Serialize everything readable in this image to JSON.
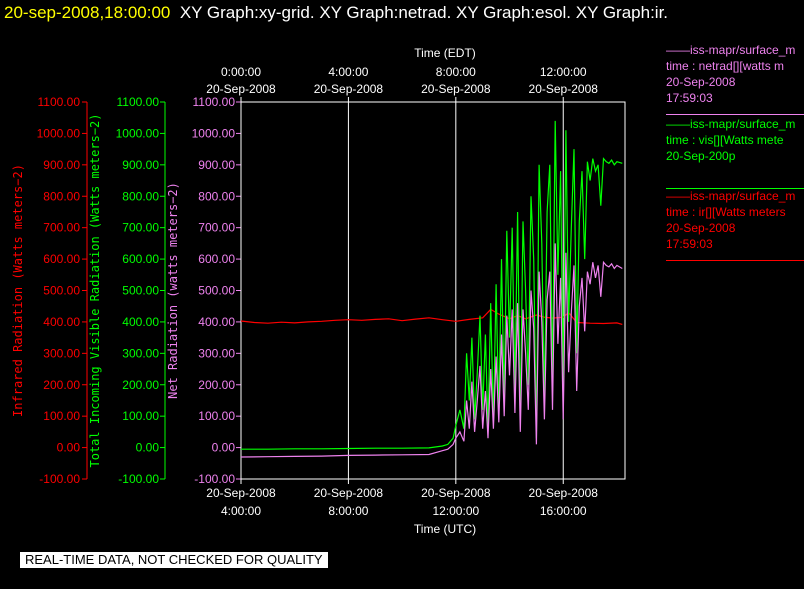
{
  "header": {
    "date": "20-sep-2008,18:00:00",
    "graphs": "XY Graph:xy-grid.  XY Graph:netrad.  XY Graph:esol.  XY Graph:ir."
  },
  "colors": {
    "infrared": "#ff0000",
    "visible": "#00ff00",
    "net": "#ee82ee",
    "axis": "#ffffff",
    "title": "#ffff00"
  },
  "chart_data": {
    "type": "line",
    "top_axis": {
      "title": "Time (EDT)",
      "ticks": [
        {
          "time": "0:00:00",
          "date": "20-Sep-2008",
          "hour_utc": 4
        },
        {
          "time": "4:00:00",
          "date": "20-Sep-2008",
          "hour_utc": 8
        },
        {
          "time": "8:00:00",
          "date": "20-Sep-2008",
          "hour_utc": 12
        },
        {
          "time": "12:00:00",
          "date": "20-Sep-2008",
          "hour_utc": 16
        }
      ]
    },
    "bottom_axis": {
      "title": "Time (UTC)",
      "xlim": [
        4,
        18.3
      ],
      "ticks": [
        {
          "date": "20-Sep-2008",
          "time": "4:00:00",
          "hour_utc": 4
        },
        {
          "date": "20-Sep-2008",
          "time": "8:00:00",
          "hour_utc": 8
        },
        {
          "date": "20-Sep-2008",
          "time": "12:00:00",
          "hour_utc": 12
        },
        {
          "date": "20-Sep-2008",
          "time": "16:00:00",
          "hour_utc": 16
        }
      ]
    },
    "y_axes": [
      {
        "label": "Infrared Radiation (Watts meters−2)",
        "color": "#ff0000",
        "ylim": [
          -100,
          1100
        ],
        "ticks": [
          "1100.00",
          "1000.00",
          "900.00",
          "800.00",
          "700.00",
          "600.00",
          "500.00",
          "400.00",
          "300.00",
          "200.00",
          "100.00",
          "0.00",
          "-100.00"
        ]
      },
      {
        "label": "Total Incoming Visible Radiation (Watts meters−2)",
        "color": "#00ff00",
        "ylim": [
          -100,
          1100
        ],
        "ticks": [
          "1100.00",
          "1000.00",
          "900.00",
          "800.00",
          "700.00",
          "600.00",
          "500.00",
          "400.00",
          "300.00",
          "200.00",
          "100.00",
          "0.00",
          "-100.00"
        ]
      },
      {
        "label": "Net Radiation (watts meters−2)",
        "color": "#ee82ee",
        "ylim": [
          -100,
          1100
        ],
        "ticks": [
          "1100.00",
          "1000.00",
          "900.00",
          "800.00",
          "700.00",
          "600.00",
          "500.00",
          "400.00",
          "300.00",
          "200.00",
          "100.00",
          "0.00",
          "-100.00"
        ]
      }
    ],
    "grid": "vertical",
    "series": [
      {
        "key": "infrared",
        "color": "#ff0000",
        "x": [
          4,
          4.5,
          5,
          5.5,
          6,
          6.5,
          7,
          7.5,
          8,
          8.5,
          9,
          9.5,
          10,
          10.5,
          11,
          11.5,
          12,
          12.5,
          13,
          13.3,
          13.6,
          14,
          14.3,
          14.6,
          15,
          15.3,
          15.6,
          16,
          16.2,
          16.5,
          17,
          17.5,
          18,
          18.2
        ],
        "y": [
          403,
          398,
          396,
          399,
          397,
          400,
          402,
          405,
          407,
          405,
          408,
          410,
          404,
          409,
          413,
          407,
          402,
          408,
          413,
          440,
          425,
          410,
          420,
          410,
          422,
          415,
          412,
          415,
          430,
          398,
          396,
          395,
          397,
          392
        ]
      },
      {
        "key": "visible",
        "color": "#00ff00",
        "x": [
          4,
          5,
          6,
          7,
          8,
          9,
          10,
          11,
          11.5,
          11.7,
          11.9,
          12.0,
          12.15,
          12.3,
          12.4,
          12.5,
          12.6,
          12.7,
          12.8,
          12.9,
          13.0,
          13.1,
          13.2,
          13.3,
          13.4,
          13.5,
          13.6,
          13.7,
          13.8,
          13.9,
          14.0,
          14.1,
          14.2,
          14.3,
          14.4,
          14.5,
          14.6,
          14.7,
          14.8,
          14.9,
          15.0,
          15.1,
          15.2,
          15.3,
          15.4,
          15.5,
          15.6,
          15.7,
          15.8,
          15.9,
          16.0,
          16.1,
          16.2,
          16.3,
          16.4,
          16.5,
          16.6,
          16.7,
          16.8,
          16.9,
          17.0,
          17.1,
          17.2,
          17.3,
          17.4,
          17.5,
          17.6,
          17.7,
          17.8,
          17.9,
          18.0,
          18.2
        ],
        "y": [
          -5,
          -5,
          -4,
          -4,
          -3,
          -2,
          -2,
          -1,
          5,
          10,
          30,
          70,
          120,
          60,
          300,
          150,
          350,
          90,
          240,
          420,
          120,
          360,
          60,
          460,
          80,
          520,
          100,
          600,
          150,
          690,
          350,
          700,
          180,
          750,
          80,
          720,
          500,
          200,
          800,
          600,
          30,
          900,
          650,
          150,
          750,
          900,
          200,
          1040,
          550,
          880,
          180,
          1010,
          400,
          700,
          950,
          300,
          720,
          880,
          600,
          910,
          850,
          920,
          880,
          900,
          770,
          920,
          910,
          905,
          915,
          900,
          910,
          905
        ]
      },
      {
        "key": "net",
        "color": "#ee82ee",
        "x": [
          4,
          5,
          6,
          7,
          8,
          9,
          10,
          11,
          11.5,
          11.7,
          11.9,
          12.0,
          12.15,
          12.3,
          12.4,
          12.5,
          12.6,
          12.7,
          12.8,
          12.9,
          13.0,
          13.1,
          13.2,
          13.3,
          13.4,
          13.5,
          13.6,
          13.7,
          13.8,
          13.9,
          14.0,
          14.1,
          14.2,
          14.3,
          14.4,
          14.5,
          14.6,
          14.7,
          14.8,
          14.9,
          15.0,
          15.1,
          15.2,
          15.3,
          15.4,
          15.5,
          15.6,
          15.7,
          15.8,
          15.9,
          16.0,
          16.1,
          16.2,
          16.3,
          16.4,
          16.5,
          16.6,
          16.7,
          16.8,
          16.9,
          17.0,
          17.1,
          17.2,
          17.3,
          17.4,
          17.5,
          17.6,
          17.7,
          17.8,
          17.9,
          18.0,
          18.2
        ],
        "y": [
          -30,
          -29,
          -28,
          -27,
          -25,
          -24,
          -23,
          -22,
          -10,
          -5,
          10,
          30,
          50,
          20,
          150,
          60,
          210,
          50,
          150,
          260,
          60,
          180,
          30,
          250,
          60,
          290,
          80,
          360,
          100,
          420,
          230,
          440,
          110,
          460,
          50,
          440,
          300,
          120,
          500,
          380,
          10,
          560,
          400,
          90,
          470,
          560,
          120,
          650,
          330,
          540,
          90,
          620,
          240,
          430,
          580,
          180,
          450,
          540,
          370,
          560,
          520,
          590,
          540,
          580,
          480,
          590,
          580,
          575,
          585,
          570,
          580,
          570
        ]
      }
    ]
  },
  "legend": [
    {
      "color": "#ee82ee",
      "lines": [
        "iss-mapr/surface_m",
        "time : netrad[][watts m",
        "20-Sep-2008",
        "17:59:03"
      ]
    },
    {
      "color": "#00ff00",
      "lines": [
        "iss-mapr/surface_m",
        "time : vis[][Watts mete",
        "20-Sep-200p",
        ""
      ]
    },
    {
      "color": "#ff0000",
      "lines": [
        "iss-mapr/surface_m",
        "time : ir[][Watts meters",
        "20-Sep-2008",
        "17:59:03"
      ]
    }
  ],
  "footer": {
    "note": "REAL-TIME DATA, NOT CHECKED FOR QUALITY"
  }
}
